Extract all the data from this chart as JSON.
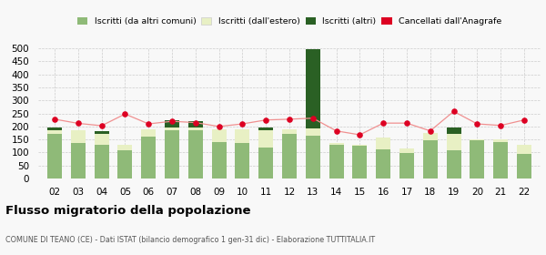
{
  "years": [
    "02",
    "03",
    "04",
    "05",
    "06",
    "07",
    "08",
    "09",
    "10",
    "11",
    "12",
    "13",
    "14",
    "15",
    "16",
    "17",
    "18",
    "19",
    "20",
    "21",
    "22"
  ],
  "iscritti_altri_comuni": [
    170,
    135,
    130,
    108,
    160,
    185,
    185,
    140,
    138,
    120,
    170,
    165,
    130,
    125,
    112,
    97,
    148,
    107,
    148,
    140,
    95
  ],
  "iscritti_estero": [
    15,
    50,
    40,
    22,
    28,
    12,
    12,
    50,
    50,
    65,
    18,
    28,
    8,
    3,
    45,
    18,
    28,
    65,
    4,
    12,
    35
  ],
  "iscritti_altri": [
    10,
    0,
    12,
    0,
    0,
    28,
    25,
    0,
    0,
    10,
    0,
    305,
    0,
    0,
    0,
    0,
    0,
    25,
    0,
    0,
    0
  ],
  "cancellati": [
    228,
    212,
    203,
    248,
    210,
    220,
    215,
    200,
    210,
    225,
    228,
    232,
    183,
    168,
    213,
    213,
    183,
    258,
    210,
    204,
    225
  ],
  "color_altri_comuni": "#8fba78",
  "color_estero": "#e8f0c4",
  "color_altri": "#2a6024",
  "color_cancellati": "#dd0022",
  "color_cancellati_line": "#f09090",
  "title": "Flusso migratorio della popolazione",
  "subtitle": "COMUNE DI TEANO (CE) - Dati ISTAT (bilancio demografico 1 gen-31 dic) - Elaborazione TUTTITALIA.IT",
  "legend_labels": [
    "Iscritti (da altri comuni)",
    "Iscritti (dall'estero)",
    "Iscritti (altri)",
    "Cancellati dall'Anagrafe"
  ],
  "ylim": [
    0,
    500
  ],
  "yticks": [
    0,
    50,
    100,
    150,
    200,
    250,
    300,
    350,
    400,
    450,
    500
  ],
  "background_color": "#f8f8f8"
}
